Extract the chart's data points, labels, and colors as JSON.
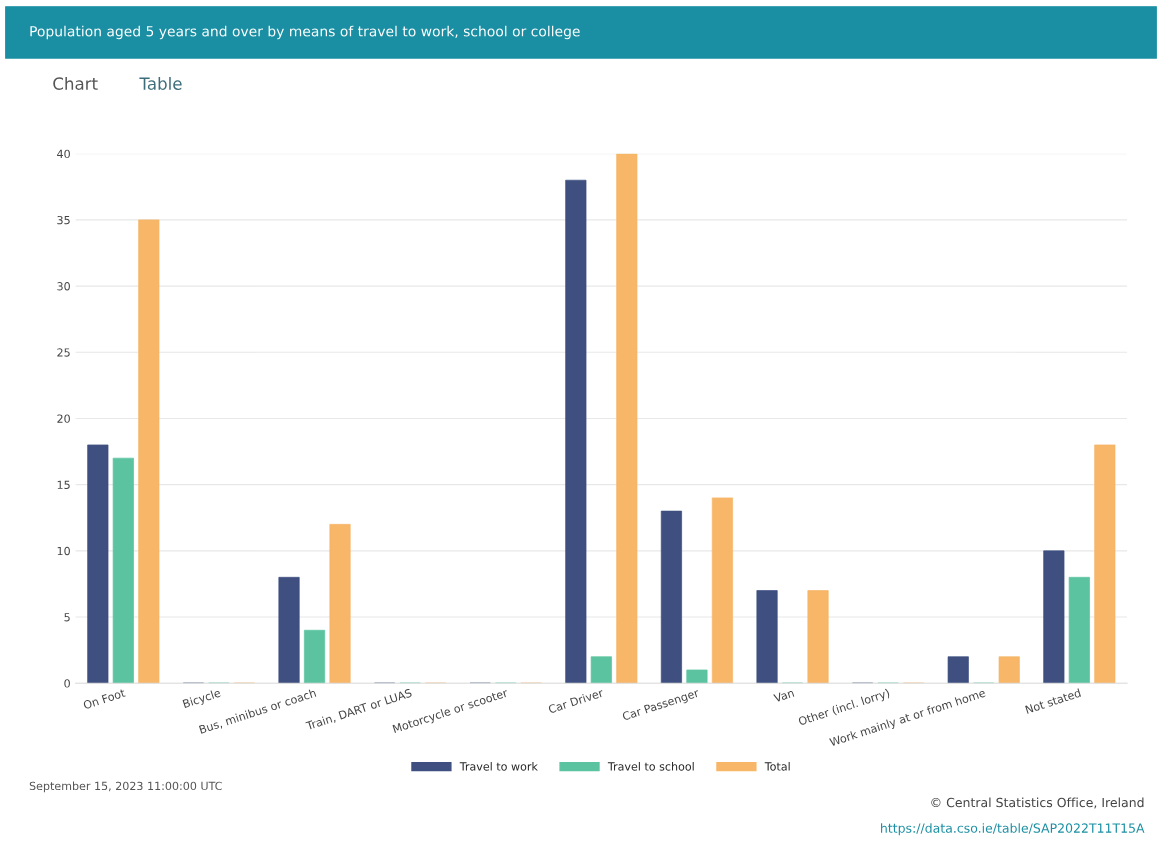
{
  "chart_data": {
    "type": "bar",
    "title": "Population aged 5 years and over by means of travel to work, school or college",
    "categories": [
      "On Foot",
      "Bicycle",
      "Bus, minibus or coach",
      "Train, DART or LUAS",
      "Motorcycle or scooter",
      "Car Driver",
      "Car Passenger",
      "Van",
      "Other (incl. lorry)",
      "Work mainly at or from home",
      "Not stated"
    ],
    "series": [
      {
        "name": "Travel to work",
        "color": "#3e4f80",
        "values": [
          18,
          0,
          8,
          0,
          0,
          38,
          13,
          7,
          0,
          2,
          10
        ]
      },
      {
        "name": "Travel to school",
        "color": "#5cc3a0",
        "values": [
          17,
          0,
          4,
          0,
          0,
          2,
          1,
          0,
          0,
          0,
          8
        ]
      },
      {
        "name": "Total",
        "color": "#f7b668",
        "values": [
          35,
          0,
          12,
          0,
          0,
          40,
          14,
          7,
          0,
          2,
          18
        ]
      }
    ],
    "ylim": [
      0,
      40
    ],
    "yticks": [
      0,
      5,
      10,
      15,
      20,
      25,
      30,
      35,
      40
    ],
    "grid": "y",
    "legend": "bottom",
    "annotations": [
      "Chart",
      "Table",
      "September 15, 2023 11:00:00 UTC",
      "© Central Statistics Office, Ireland",
      "https://data.cso.ie/table/SAP2022T11T15A"
    ]
  }
}
